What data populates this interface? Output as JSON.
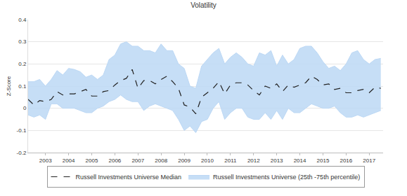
{
  "chart_data": {
    "type": "line",
    "title": "Volatility",
    "y_label": "Z-Score",
    "x": [
      2002.25,
      2002.5,
      2002.75,
      2003,
      2003.25,
      2003.5,
      2003.75,
      2004,
      2004.25,
      2004.5,
      2004.75,
      2005,
      2005.25,
      2005.5,
      2005.75,
      2006,
      2006.25,
      2006.5,
      2006.75,
      2007,
      2007.25,
      2007.5,
      2007.75,
      2008,
      2008.25,
      2008.5,
      2008.75,
      2009,
      2009.25,
      2009.5,
      2009.75,
      2010,
      2010.25,
      2010.5,
      2010.75,
      2011,
      2011.25,
      2011.5,
      2011.75,
      2012,
      2012.25,
      2012.5,
      2012.75,
      2013,
      2013.25,
      2013.5,
      2013.75,
      2014,
      2014.25,
      2014.5,
      2014.75,
      2015,
      2015.25,
      2015.5,
      2015.75,
      2016,
      2016.25,
      2016.5,
      2016.75,
      2017,
      2017.25,
      2017.5
    ],
    "series": [
      {
        "name": "Russell Investments Universe (25th -75th percentile)",
        "type": "band",
        "color": "#bcd8f5",
        "lower": [
          -0.03,
          -0.04,
          -0.03,
          -0.05,
          0.02,
          0.02,
          0.0,
          0.0,
          0.0,
          -0.01,
          -0.02,
          -0.02,
          0.0,
          0.01,
          0.03,
          0.04,
          0.06,
          0.04,
          0.03,
          0.03,
          -0.01,
          0.01,
          0.02,
          0.01,
          0.0,
          -0.01,
          -0.05,
          -0.1,
          -0.08,
          -0.11,
          -0.06,
          -0.05,
          0.0,
          0.03,
          -0.05,
          -0.02,
          0.0,
          0.0,
          -0.04,
          -0.05,
          -0.05,
          -0.02,
          -0.05,
          -0.01,
          -0.05,
          0.0,
          -0.02,
          -0.02,
          0.0,
          0.02,
          0.01,
          0.0,
          0.0,
          0.01,
          -0.02,
          -0.04,
          -0.04,
          -0.03,
          -0.04,
          -0.03,
          -0.02,
          -0.01
        ],
        "upper": [
          0.12,
          0.12,
          0.13,
          0.1,
          0.13,
          0.17,
          0.15,
          0.18,
          0.175,
          0.165,
          0.14,
          0.15,
          0.13,
          0.15,
          0.22,
          0.24,
          0.29,
          0.3,
          0.28,
          0.28,
          0.26,
          0.26,
          0.25,
          0.29,
          0.26,
          0.26,
          0.2,
          0.18,
          0.1,
          0.09,
          0.19,
          0.22,
          0.25,
          0.27,
          0.2,
          0.23,
          0.25,
          0.23,
          0.2,
          0.19,
          0.25,
          0.24,
          0.26,
          0.19,
          0.24,
          0.2,
          0.22,
          0.27,
          0.28,
          0.28,
          0.25,
          0.21,
          0.18,
          0.19,
          0.17,
          0.2,
          0.25,
          0.26,
          0.22,
          0.2,
          0.22,
          0.225
        ]
      },
      {
        "name": "Russell Investments Universe Median",
        "type": "line",
        "color": "#222222",
        "line_style": "dashed",
        "values": [
          0.04,
          0.015,
          0.035,
          0.03,
          0.04,
          0.075,
          0.06,
          0.065,
          0.065,
          0.075,
          0.085,
          0.055,
          0.055,
          0.075,
          0.08,
          0.105,
          0.125,
          0.135,
          0.175,
          0.09,
          0.125,
          0.125,
          0.11,
          0.13,
          0.145,
          0.12,
          0.09,
          0.015,
          0.005,
          -0.025,
          0.05,
          0.07,
          0.09,
          0.12,
          0.065,
          0.105,
          0.115,
          0.115,
          0.105,
          0.08,
          0.06,
          0.1,
          0.09,
          0.11,
          0.075,
          0.105,
          0.095,
          0.105,
          0.115,
          0.145,
          0.13,
          0.105,
          0.11,
          0.085,
          0.09,
          0.07,
          0.07,
          0.08,
          0.085,
          0.07,
          0.095,
          0.09
        ]
      }
    ],
    "xlim": [
      2002.25,
      2017.6
    ],
    "xticks": [
      2003,
      2004,
      2005,
      2006,
      2007,
      2008,
      2009,
      2010,
      2011,
      2012,
      2013,
      2014,
      2015,
      2016,
      2017
    ],
    "ylim": [
      -0.2,
      0.4
    ],
    "yticks": [
      -0.2,
      -0.1,
      0,
      0.1,
      0.2,
      0.3,
      0.4
    ],
    "grid": true,
    "legend": "bottom"
  }
}
